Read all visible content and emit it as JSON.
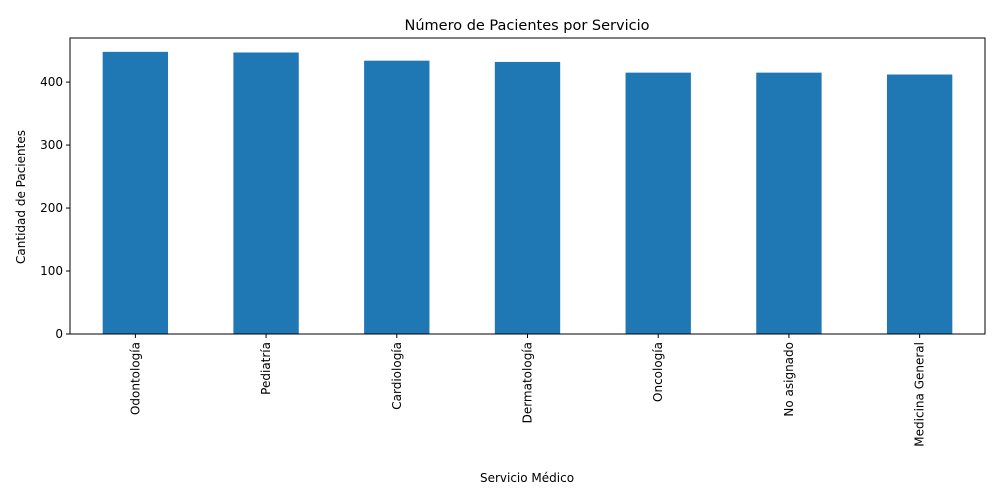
{
  "chart_data": {
    "type": "bar",
    "title": "Número de Pacientes por Servicio",
    "xlabel": "Servicio Médico",
    "ylabel": "Cantidad de Pacientes",
    "categories": [
      "Odontología",
      "Pediatría",
      "Cardiología",
      "Dermatología",
      "Oncología",
      "No asignado",
      "Medicina General"
    ],
    "values": [
      448,
      447,
      434,
      432,
      415,
      415,
      412
    ],
    "ylim": [
      0,
      470
    ],
    "yticks": [
      0,
      100,
      200,
      300,
      400
    ],
    "grid": false,
    "bar_color": "#1f77b4"
  }
}
